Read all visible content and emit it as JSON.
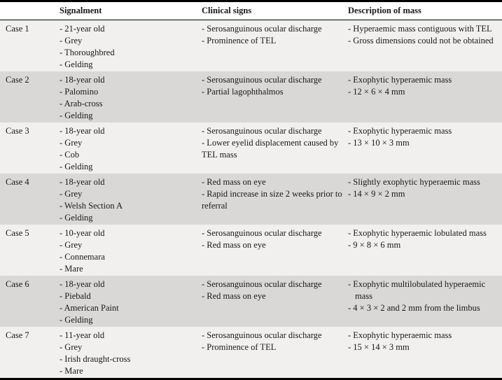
{
  "table": {
    "columns": [
      "",
      "Signalment",
      "Clinical signs",
      "Description of mass"
    ],
    "rows": [
      {
        "case": "Case 1",
        "signalment": [
          "- 21-year old",
          "- Grey",
          "- Thoroughbred",
          "- Gelding"
        ],
        "clinical_signs": [
          "- Serosanguinous ocular discharge",
          "- Prominence of TEL"
        ],
        "description": [
          "- Hyperaemic mass contiguous with TEL",
          "- Gross dimensions could not be obtained"
        ]
      },
      {
        "case": "Case 2",
        "signalment": [
          "- 18-year old",
          "- Palomino",
          "- Arab-cross",
          "- Gelding"
        ],
        "clinical_signs": [
          "- Serosanguinous ocular discharge",
          "- Partial lagophthalmos"
        ],
        "description": [
          "- Exophytic hyperaemic mass",
          "- 12 × 6 × 4 mm"
        ]
      },
      {
        "case": "Case 3",
        "signalment": [
          "- 18-year old",
          "- Grey",
          "- Cob",
          "- Gelding"
        ],
        "clinical_signs": [
          "- Serosanguinous ocular discharge",
          "- Lower eyelid displacement caused by TEL mass"
        ],
        "description": [
          "- Exophytic hyperaemic mass",
          "- 13 × 10 × 3 mm"
        ]
      },
      {
        "case": "Case 4",
        "signalment": [
          "- 18-year old",
          "- Grey",
          "- Welsh Section A",
          "- Gelding"
        ],
        "clinical_signs": [
          "- Red mass on eye",
          "- Rapid increase in size 2 weeks prior to referral"
        ],
        "description": [
          "- Slightly exophytic hyperaemic mass",
          "- 14 × 9 × 2 mm"
        ]
      },
      {
        "case": "Case 5",
        "signalment": [
          "- 10-year old",
          "- Grey",
          "- Connemara",
          "- Mare"
        ],
        "clinical_signs": [
          "- Serosanguinous ocular discharge",
          "- Red mass on eye"
        ],
        "description": [
          "- Exophytic hyperaemic lobulated mass",
          "- 9 × 8 × 6 mm"
        ]
      },
      {
        "case": "Case 6",
        "signalment": [
          "- 18-year old",
          "- Piebald",
          "- American Paint",
          "- Gelding"
        ],
        "clinical_signs": [
          "- Serosanguinous ocular discharge",
          "- Red mass on eye"
        ],
        "description": [
          "- Exophytic multilobulated hyperaemic mass",
          "- 4 × 3 × 2 and 2 mm from the limbus"
        ]
      },
      {
        "case": "Case 7",
        "signalment": [
          "- 11-year old",
          "- Grey",
          "- Irish draught-cross",
          "- Mare"
        ],
        "clinical_signs": [
          "- Serosanguinous ocular discharge",
          "- Prominence of TEL"
        ],
        "description": [
          "- Exophytic hyperaemic mass",
          "- 15 × 14 × 3 mm"
        ]
      }
    ]
  },
  "colors": {
    "row_light": "#f1f0ee",
    "row_dark": "#d9d8d6",
    "border": "#000000"
  }
}
